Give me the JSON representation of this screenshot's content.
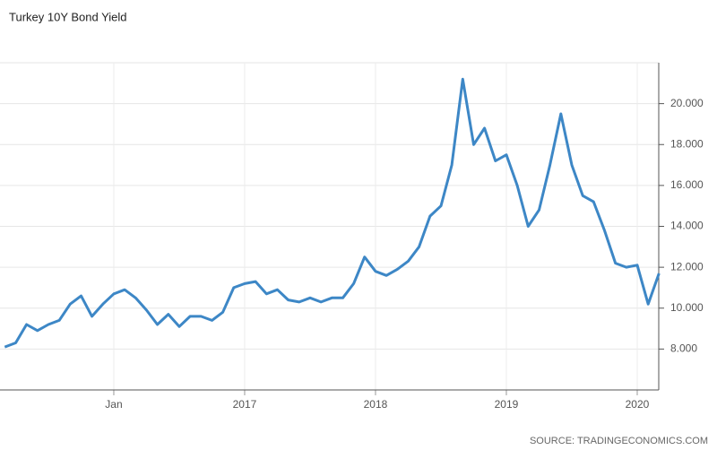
{
  "chart_data": {
    "type": "line",
    "title": "Turkey 10Y Bond Yield",
    "source": "SOURCE: TRADINGECONOMICS.COM",
    "categories": [
      null,
      null,
      null,
      null,
      null,
      null,
      null,
      null,
      null,
      null,
      "Jan",
      null,
      null,
      null,
      null,
      null,
      null,
      null,
      null,
      null,
      null,
      null,
      "2017",
      null,
      null,
      null,
      null,
      null,
      null,
      null,
      null,
      null,
      null,
      null,
      "2018",
      null,
      null,
      null,
      null,
      null,
      null,
      null,
      null,
      null,
      null,
      null,
      "2019",
      null,
      null,
      null,
      null,
      null,
      null,
      null,
      null,
      null,
      null,
      null,
      "2020",
      null,
      null
    ],
    "series": [
      {
        "name": "Turkey 10Y Bond Yield",
        "color": "#3d87c6",
        "values": [
          8.1,
          8.3,
          9.2,
          8.9,
          9.2,
          9.4,
          10.2,
          10.6,
          9.6,
          10.2,
          10.7,
          10.9,
          10.5,
          9.9,
          9.2,
          9.7,
          9.1,
          9.6,
          9.6,
          9.4,
          9.8,
          11.0,
          11.2,
          11.3,
          10.7,
          10.9,
          10.4,
          10.3,
          10.5,
          10.3,
          10.5,
          10.5,
          11.2,
          12.5,
          11.8,
          11.6,
          11.9,
          12.3,
          13.0,
          14.5,
          15.0,
          17.0,
          21.2,
          18.0,
          18.8,
          17.2,
          17.5,
          16.0,
          14.0,
          14.8,
          17.0,
          19.5,
          17.0,
          15.5,
          15.2,
          13.8,
          12.2,
          12.0,
          12.1,
          10.2,
          11.7
        ]
      }
    ],
    "ylim": [
      6,
      22
    ],
    "yticks": [
      {
        "value": 8,
        "label": "8.000"
      },
      {
        "value": 10,
        "label": "10.000"
      },
      {
        "value": 12,
        "label": "12.000"
      },
      {
        "value": 14,
        "label": "14.000"
      },
      {
        "value": 16,
        "label": "16.000"
      },
      {
        "value": 18,
        "label": "18.000"
      },
      {
        "value": 20,
        "label": "20.000"
      }
    ],
    "grid": true
  }
}
